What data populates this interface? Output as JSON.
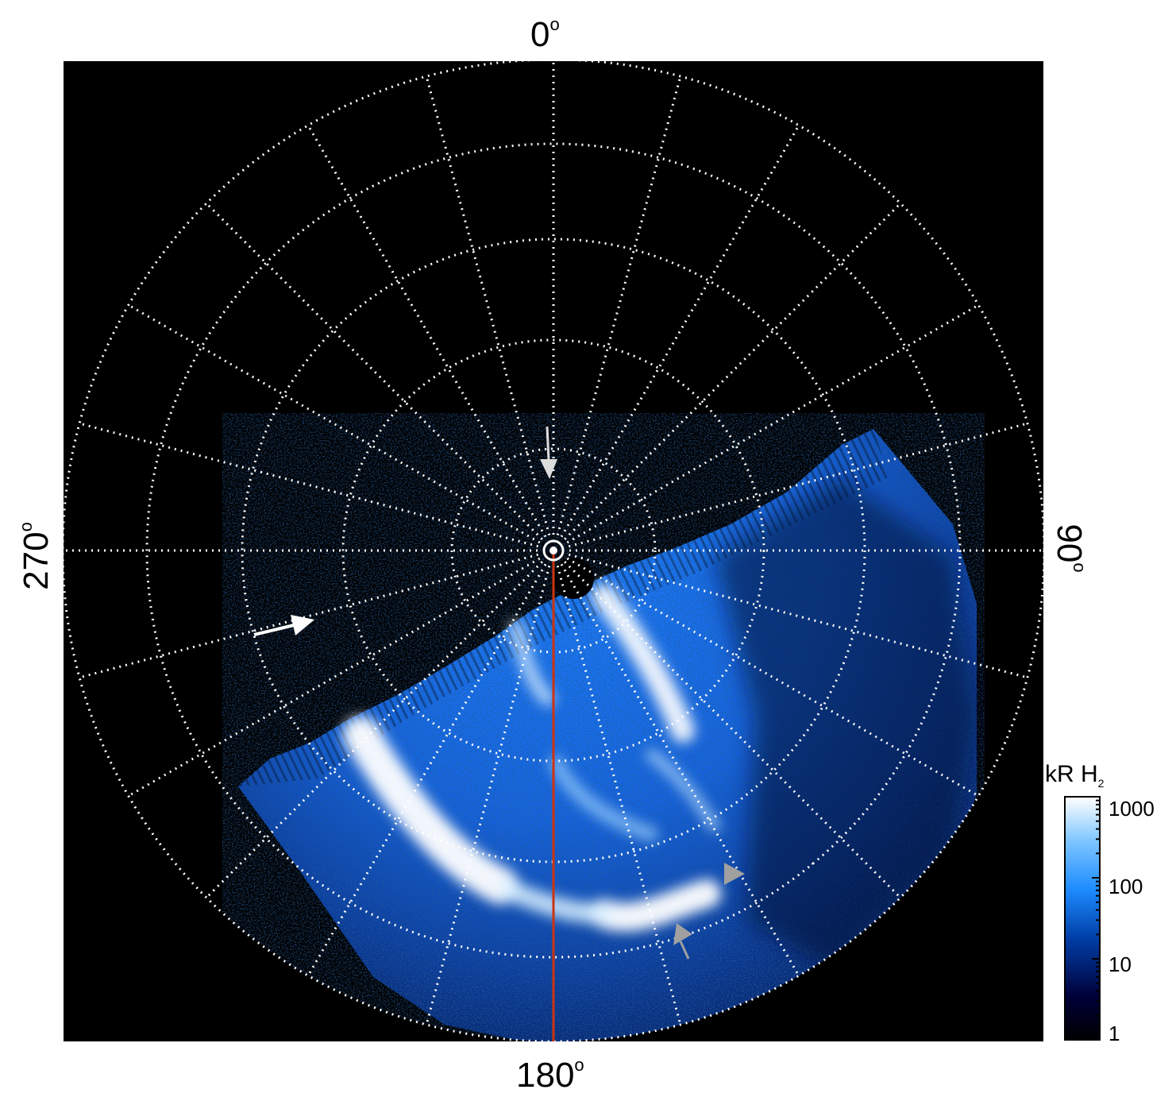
{
  "plot": {
    "background_color": "#000000",
    "grid_color": "#ffffff",
    "meridian_line_color": "#cc3311",
    "arrow_color_white": "#ffffff",
    "arrow_color_gray": "#a0a0a0"
  },
  "axis_labels": {
    "top": "0",
    "bottom": "180",
    "left": "270",
    "right": "90",
    "degree_symbol": "o"
  },
  "colorbar": {
    "title_main": "kR H",
    "title_sub": "2",
    "scale": "log",
    "range": [
      1,
      1000
    ],
    "ticks": [
      "1000",
      "100",
      "10",
      "1"
    ],
    "colors": [
      "#000000",
      "#00003a",
      "#003fa8",
      "#1e8cff",
      "#7fc6ff",
      "#ffffff"
    ]
  }
}
